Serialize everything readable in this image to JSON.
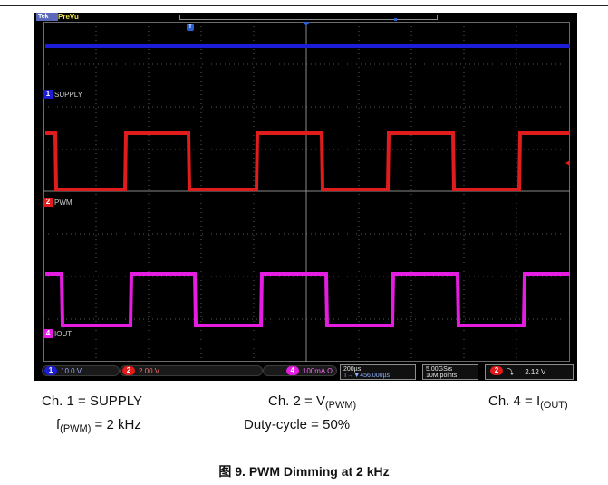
{
  "titlebar": {
    "brand": "Tek",
    "mode": "PreVu"
  },
  "channels": {
    "ch1": {
      "num": "1",
      "label": "SUPPLY",
      "scale": "10.0 V",
      "color": "#1d1dd6"
    },
    "ch2": {
      "num": "2",
      "label": "PWM",
      "scale": "2.00 V",
      "color": "#e01c1c"
    },
    "ch4": {
      "num": "4",
      "label": "IOUT",
      "scale": "100mA",
      "bw": "Ω",
      "color": "#e41de0"
    }
  },
  "trigger_marker": "T",
  "timebase": {
    "per_div": "200µs",
    "position": "T→▼456.000µs"
  },
  "acquisition": {
    "rate": "5.00GS/s",
    "points": "10M points"
  },
  "trigger": {
    "source": "2",
    "slope": "⤵",
    "level": "2.12 V"
  },
  "captions": {
    "ch1": "Ch. 1 = SUPPLY",
    "ch2_prefix": "Ch. 2 = V",
    "ch2_sub": "(PWM)",
    "ch4_prefix": "Ch. 4 = I",
    "ch4_sub": "(OUT)",
    "freq_prefix": "f",
    "freq_sub": "(PWM)",
    "freq_value": " = 2 kHz",
    "duty": "Duty-cycle = 50%"
  },
  "figure_title": "图 9. PWM Dimming at 2 kHz"
}
